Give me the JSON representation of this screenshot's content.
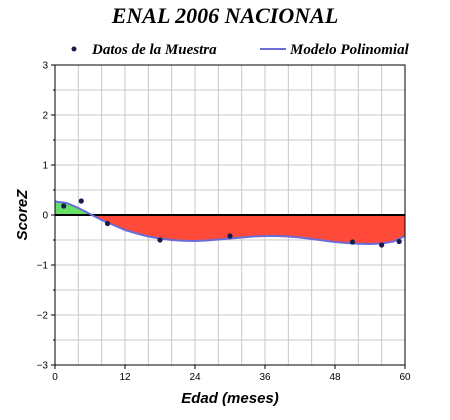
{
  "chart_data": {
    "type": "line",
    "title": "ENAL 2006 NACIONAL",
    "xlabel": "Edad (meses)",
    "ylabel": "ScoreZ",
    "xlim": [
      0,
      60
    ],
    "ylim": [
      -3,
      3
    ],
    "x_ticks": [
      0,
      12,
      24,
      36,
      48,
      60
    ],
    "y_ticks": [
      -3,
      -2,
      -1,
      0,
      1,
      2,
      3
    ],
    "grid": true,
    "legend_position": "top",
    "colors": {
      "points": "#1a1a4e",
      "model_line": "#6b6bd9",
      "fill_positive": "#66e066",
      "fill_negative": "#ff4a3a"
    },
    "series": [
      {
        "name": "Datos de la Muestra",
        "kind": "scatter",
        "x": [
          1.5,
          4.5,
          9,
          18,
          30,
          51,
          56,
          59
        ],
        "y": [
          0.18,
          0.28,
          -0.17,
          -0.5,
          -0.42,
          -0.54,
          -0.6,
          -0.53
        ]
      },
      {
        "name": "Modelo Polinomial",
        "kind": "line",
        "x": [
          0,
          2,
          4,
          6,
          8,
          10,
          12,
          14,
          16,
          18,
          20,
          22,
          24,
          26,
          28,
          30,
          32,
          34,
          36,
          38,
          40,
          42,
          44,
          46,
          48,
          50,
          52,
          54,
          56,
          58,
          60
        ],
        "y": [
          0.27,
          0.24,
          0.14,
          0.02,
          -0.1,
          -0.2,
          -0.3,
          -0.37,
          -0.43,
          -0.47,
          -0.5,
          -0.515,
          -0.52,
          -0.51,
          -0.49,
          -0.47,
          -0.45,
          -0.43,
          -0.42,
          -0.42,
          -0.43,
          -0.45,
          -0.48,
          -0.51,
          -0.54,
          -0.56,
          -0.575,
          -0.58,
          -0.57,
          -0.53,
          -0.42
        ]
      }
    ]
  }
}
